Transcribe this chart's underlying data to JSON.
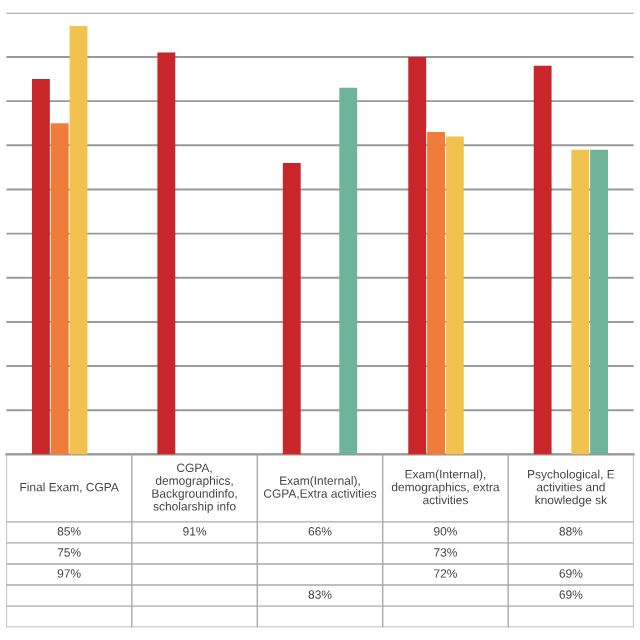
{
  "chart_data": {
    "type": "bar",
    "categories": [
      "Final Exam, CGPA",
      "CGPA,\ndemographics,\nBackgroundinfo,\nscholarship info",
      "Exam(Internal),\nCGPA,Extra activities",
      "Exam(Internal),\ndemographics, extra\nactivities",
      "Psychological, E\nactivities and\nknowledge sk"
    ],
    "series": [
      {
        "color": "#c8262b",
        "values": [
          85,
          91,
          66,
          90,
          88
        ],
        "value_labels": [
          "85%",
          "91%",
          "66%",
          "90%",
          "88%"
        ]
      },
      {
        "color": "#f07c3a",
        "values": [
          75,
          null,
          null,
          73,
          null
        ],
        "value_labels": [
          "75%",
          null,
          null,
          "73%",
          null
        ]
      },
      {
        "color": "#f2c24e",
        "values": [
          97,
          null,
          null,
          72,
          69
        ],
        "value_labels": [
          "97%",
          null,
          null,
          "72%",
          "69%"
        ]
      },
      {
        "color": "#6fb39a",
        "values": [
          null,
          null,
          83,
          null,
          69
        ],
        "value_labels": [
          null,
          null,
          "83%",
          null,
          "69%"
        ]
      }
    ],
    "ylim": [
      0,
      100
    ],
    "yticks": [
      {
        "value": 0,
        "label": null
      },
      {
        "value": 10,
        "label": null
      },
      {
        "value": 20,
        "label": null
      },
      {
        "value": 30,
        "label": null
      },
      {
        "value": 40,
        "label": null
      },
      {
        "value": 50,
        "label": null
      },
      {
        "value": 60,
        "label": null
      },
      {
        "value": 70,
        "label": null
      },
      {
        "value": 80,
        "label": null
      },
      {
        "value": 90,
        "label": null
      },
      {
        "value": 100,
        "label": null
      }
    ],
    "grid": "y",
    "legend": false
  }
}
